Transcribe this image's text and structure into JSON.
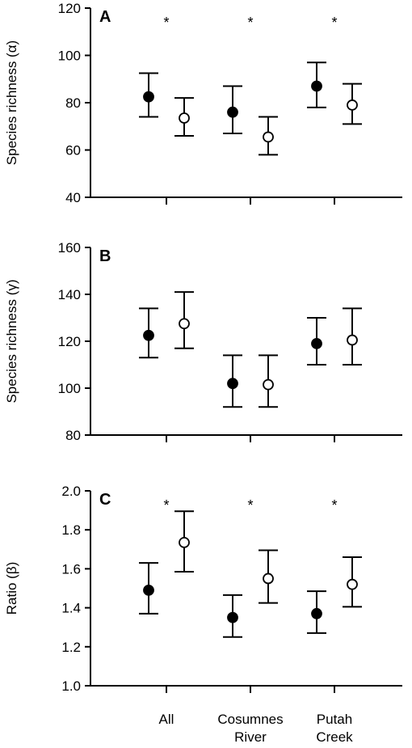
{
  "chart_data": [
    {
      "type": "scatter",
      "panel_label": "A",
      "ylabel": "Species richness (α)",
      "ylim": [
        40,
        120
      ],
      "yticks": [
        "40",
        "60",
        "80",
        "100",
        "120"
      ],
      "categories": [
        "All",
        "Cosumnes River",
        "Putah Creek"
      ],
      "series": [
        {
          "marker": "filled",
          "values": [
            82.5,
            76,
            87
          ],
          "lower": [
            74,
            67,
            78
          ],
          "upper": [
            92.5,
            87,
            97
          ]
        },
        {
          "marker": "open",
          "values": [
            73.5,
            65.5,
            79
          ],
          "lower": [
            66,
            58,
            71
          ],
          "upper": [
            82,
            74,
            88
          ]
        }
      ],
      "annotations": [
        "*",
        "*",
        "*"
      ]
    },
    {
      "type": "scatter",
      "panel_label": "B",
      "ylabel": "Species richness (γ)",
      "ylim": [
        80,
        160
      ],
      "yticks": [
        "80",
        "100",
        "120",
        "140",
        "160"
      ],
      "categories": [
        "All",
        "Cosumnes River",
        "Putah Creek"
      ],
      "series": [
        {
          "marker": "filled",
          "values": [
            122.5,
            102,
            119
          ],
          "lower": [
            113,
            92,
            110
          ],
          "upper": [
            134,
            114,
            130
          ]
        },
        {
          "marker": "open",
          "values": [
            127.5,
            101.5,
            120.5
          ],
          "lower": [
            117,
            92,
            110
          ],
          "upper": [
            141,
            114,
            134
          ]
        }
      ],
      "annotations": [
        "",
        "",
        ""
      ]
    },
    {
      "type": "scatter",
      "panel_label": "C",
      "ylabel": "Ratio (β)",
      "ylim": [
        1.0,
        2.0
      ],
      "yticks": [
        "1.0",
        "1.2",
        "1.4",
        "1.6",
        "1.8",
        "2.0"
      ],
      "categories": [
        "All",
        "Cosumnes River",
        "Putah Creek"
      ],
      "series": [
        {
          "marker": "filled",
          "values": [
            1.49,
            1.35,
            1.37
          ],
          "lower": [
            1.37,
            1.25,
            1.27
          ],
          "upper": [
            1.63,
            1.465,
            1.485
          ]
        },
        {
          "marker": "open",
          "values": [
            1.735,
            1.55,
            1.52
          ],
          "lower": [
            1.585,
            1.425,
            1.405
          ],
          "upper": [
            1.895,
            1.695,
            1.66
          ]
        }
      ],
      "annotations": [
        "*",
        "*",
        "*"
      ]
    }
  ],
  "xaxis": {
    "labels": [
      {
        "line1": "All",
        "line2": ""
      },
      {
        "line1": "Cosumnes",
        "line2": "River"
      },
      {
        "line1": "Putah",
        "line2": "Creek"
      }
    ]
  },
  "colors": {
    "axis": "#000000",
    "filled_marker": "#000000",
    "open_marker_fill": "#ffffff"
  }
}
